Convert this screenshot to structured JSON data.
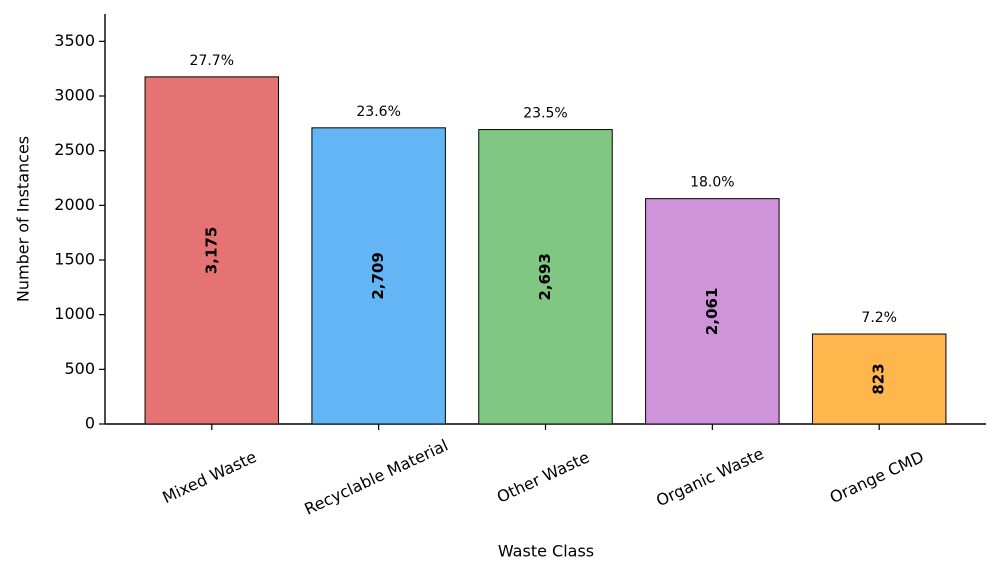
{
  "chart_data": {
    "type": "bar",
    "x_label": "Waste Class",
    "y_label": "Number of Instances",
    "categories": [
      "Mixed Waste",
      "Recyclable Material",
      "Other Waste",
      "Organic Waste",
      "Orange CMD"
    ],
    "values": [
      3175,
      2709,
      2693,
      2061,
      823
    ],
    "value_labels": [
      "3,175",
      "2,709",
      "2,693",
      "2,061",
      "823"
    ],
    "percent_labels": [
      "27.7%",
      "23.6%",
      "23.5%",
      "18.0%",
      "7.2%"
    ],
    "colors": [
      "#e57373",
      "#64b5f6",
      "#81c784",
      "#ce93d8",
      "#ffb74d"
    ],
    "ylim": [
      0,
      3750
    ],
    "yticks": [
      0,
      500,
      1000,
      1500,
      2000,
      2500,
      3000,
      3500
    ],
    "grid": false
  }
}
